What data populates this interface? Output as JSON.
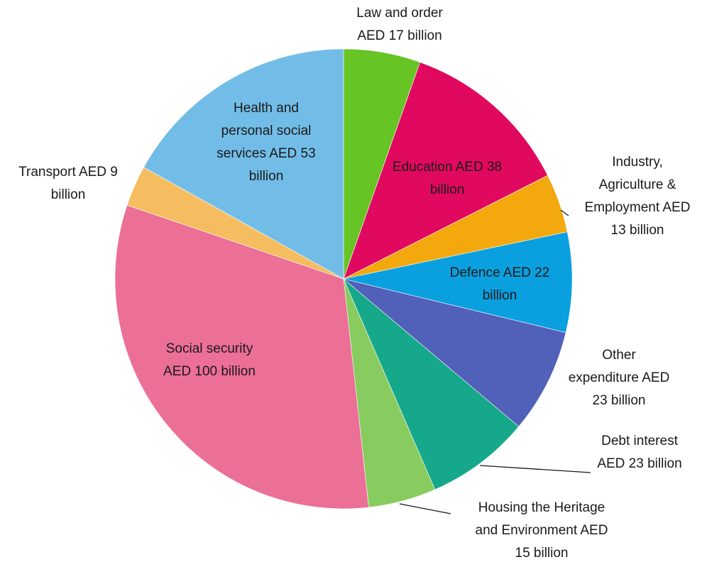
{
  "chart_data": {
    "type": "pie",
    "title": "",
    "unit": "AED billion",
    "slices": [
      {
        "name": "Law and order",
        "value": 17,
        "color": "#66c424",
        "label": [
          "Law and order",
          "AED 17 billion"
        ]
      },
      {
        "name": "Education",
        "value": 38,
        "color": "#e0095f",
        "label": [
          "Education AED 38",
          "billion"
        ]
      },
      {
        "name": "Industry, Agriculture & Employment",
        "value": 13,
        "color": "#f3a80e",
        "label": [
          "Industry,",
          "Agriculture &",
          "Employment AED",
          "13 billion"
        ]
      },
      {
        "name": "Defence",
        "value": 22,
        "color": "#0aa0e0",
        "label": [
          "Defence AED 22",
          "billion"
        ]
      },
      {
        "name": "Other expenditure",
        "value": 23,
        "color": "#5160b8",
        "label": [
          "Other",
          "expenditure AED",
          "23 billion"
        ]
      },
      {
        "name": "Debt interest",
        "value": 23,
        "color": "#16a88a",
        "label": [
          "Debt interest",
          "AED 23 billion"
        ]
      },
      {
        "name": "Housing the Heritage and Environment",
        "value": 15,
        "color": "#88cc60",
        "label": [
          "Housing the Heritage",
          "and Environment AED",
          "15 billion"
        ]
      },
      {
        "name": "Social security",
        "value": 100,
        "color": "#ec6f96",
        "label": [
          "Social security",
          "AED 100 billion"
        ]
      },
      {
        "name": "Transport",
        "value": 9,
        "color": "#f5bd60",
        "label": [
          "Transport AED 9",
          "billion"
        ]
      },
      {
        "name": "Health and personal social services",
        "value": 53,
        "color": "#72bde8",
        "label": [
          "Health and",
          "personal social",
          "services AED 53",
          "billion"
        ]
      }
    ]
  }
}
